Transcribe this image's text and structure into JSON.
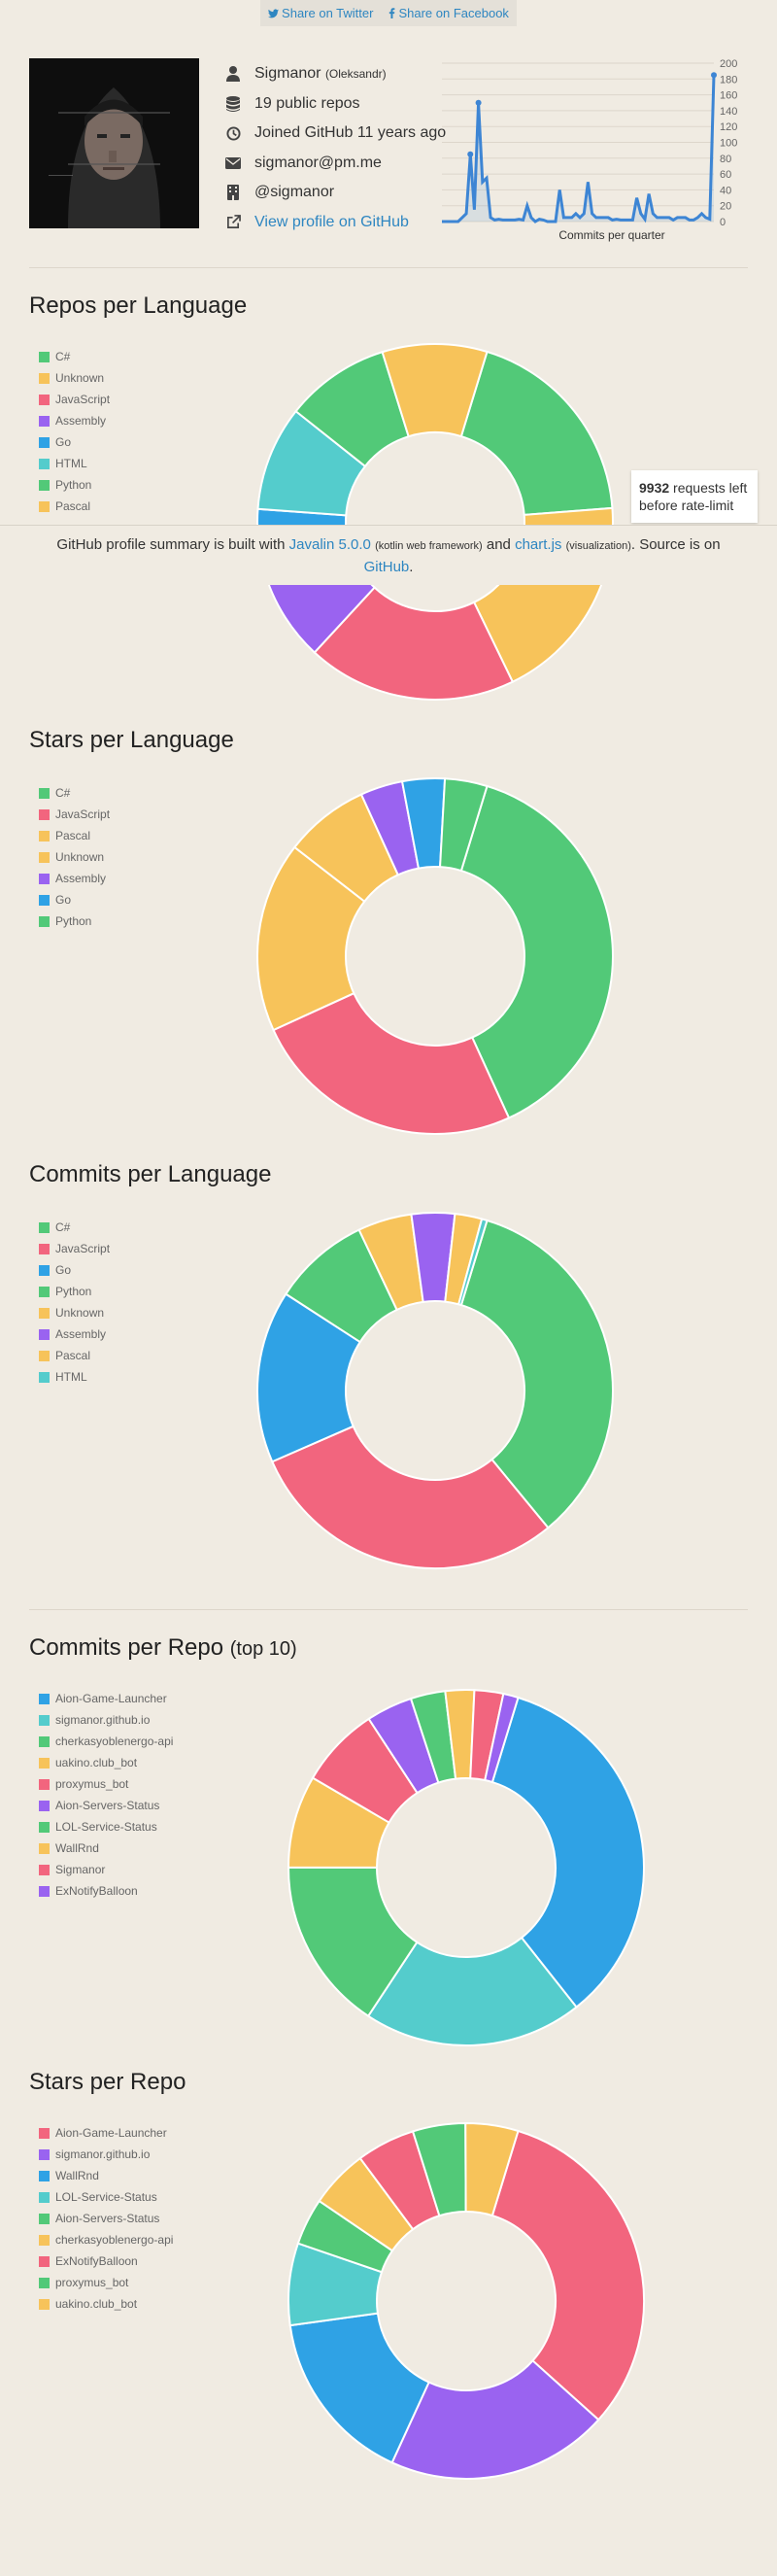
{
  "share": {
    "twitter": "Share on Twitter",
    "facebook": "Share on Facebook"
  },
  "profile": {
    "username": "Sigmanor",
    "realname": "(Oleksandr)",
    "repos": "19 public repos",
    "joined": "Joined GitHub 11 years ago",
    "email": "sigmanor@pm.me",
    "company": "@sigmanor",
    "link": "View profile on GitHub"
  },
  "footer": {
    "part1": "GitHub profile summary is built with ",
    "javalin": "Javalin 5.0.0",
    "kotlin": "(kotlin web framework)",
    "and": " and ",
    "chartjs": "chart.js",
    "vis": "(visualization)",
    "source": ". Source is on ",
    "github": "GitHub",
    "end": "."
  },
  "rate": {
    "count": "9932",
    "text1": " requests left",
    "text2": "before rate-limit"
  },
  "colors": {
    "green": "#52c978",
    "yellow": "#f7c35a",
    "pink": "#f2657e",
    "purple": "#9a63f0",
    "blue": "#2fa2e5",
    "teal": "#54cccc",
    "accent": "#2e86c1"
  },
  "chart_data": [
    {
      "type": "line",
      "id": "commits-per-quarter",
      "xlabel": "Commits per quarter",
      "ylim": [
        0,
        200
      ],
      "yticks": [
        0,
        20,
        40,
        60,
        80,
        100,
        120,
        140,
        160,
        180,
        200
      ],
      "values": [
        0,
        0,
        0,
        0,
        0,
        5,
        10,
        85,
        15,
        150,
        50,
        55,
        5,
        2,
        3,
        2,
        2,
        2,
        2,
        3,
        2,
        20,
        5,
        0,
        3,
        2,
        0,
        0,
        0,
        40,
        5,
        5,
        5,
        10,
        5,
        10,
        50,
        10,
        5,
        5,
        5,
        5,
        2,
        3,
        2,
        2,
        2,
        2,
        30,
        10,
        3,
        35,
        10,
        5,
        5,
        5,
        5,
        2,
        5,
        5,
        5,
        2,
        2,
        5,
        10,
        5,
        3,
        185
      ],
      "grid": true
    },
    {
      "type": "pie",
      "id": "repos-per-language",
      "title": "Repos per Language",
      "categories": [
        "C#",
        "Unknown",
        "JavaScript",
        "Assembly",
        "Go",
        "HTML",
        "Python",
        "Pascal"
      ],
      "values": [
        4,
        4,
        4,
        2,
        1,
        2,
        2,
        2
      ],
      "colors": [
        "#52c978",
        "#f7c35a",
        "#f2657e",
        "#9a63f0",
        "#2fa2e5",
        "#54cccc",
        "#52c978",
        "#f7c35a"
      ]
    },
    {
      "type": "pie",
      "id": "stars-per-language",
      "title": "Stars per Language",
      "categories": [
        "C#",
        "JavaScript",
        "Pascal",
        "Unknown",
        "Assembly",
        "Go",
        "Python"
      ],
      "values": [
        40,
        26,
        18,
        8,
        4,
        4,
        4
      ],
      "colors": [
        "#52c978",
        "#f2657e",
        "#f7c35a",
        "#f7c35a",
        "#9a63f0",
        "#2fa2e5",
        "#52c978"
      ]
    },
    {
      "type": "pie",
      "id": "commits-per-language",
      "title": "Commits per Language",
      "categories": [
        "C#",
        "JavaScript",
        "Go",
        "Python",
        "Unknown",
        "Assembly",
        "Pascal",
        "HTML"
      ],
      "values": [
        35,
        30,
        16,
        9,
        5,
        4,
        2.5,
        0.5
      ],
      "colors": [
        "#52c978",
        "#f2657e",
        "#2fa2e5",
        "#52c978",
        "#f7c35a",
        "#9a63f0",
        "#f7c35a",
        "#54cccc"
      ]
    },
    {
      "type": "pie",
      "id": "commits-per-repo",
      "title": "Commits per Repo",
      "subtitle": "(top 10)",
      "categories": [
        "Aion-Game-Launcher",
        "sigmanor.github.io",
        "cherkasyoblenergo-api",
        "uakino.club_bot",
        "proxymus_bot",
        "Aion-Servers-Status",
        "LOL-Service-Status",
        "WallRnd",
        "Sigmanor",
        "ExNotifyBalloon"
      ],
      "values": [
        33,
        19,
        15,
        8,
        7,
        4,
        3,
        2.5,
        2.5,
        1.3
      ],
      "colors": [
        "#2fa2e5",
        "#54cccc",
        "#52c978",
        "#f7c35a",
        "#f2657e",
        "#9a63f0",
        "#52c978",
        "#f7c35a",
        "#f2657e",
        "#9a63f0"
      ]
    },
    {
      "type": "pie",
      "id": "stars-per-repo",
      "title": "Stars per Repo",
      "categories": [
        "Aion-Game-Launcher",
        "sigmanor.github.io",
        "WallRnd",
        "LOL-Service-Status",
        "Aion-Servers-Status",
        "cherkasyoblenergo-api",
        "ExNotifyBalloon",
        "proxymus_bot",
        "uakino.club_bot"
      ],
      "values": [
        30,
        19,
        15,
        7,
        4,
        5,
        5,
        4.5,
        4.5
      ],
      "colors": [
        "#f2657e",
        "#9a63f0",
        "#2fa2e5",
        "#54cccc",
        "#52c978",
        "#f7c35a",
        "#f2657e",
        "#52c978",
        "#f7c35a"
      ]
    }
  ]
}
